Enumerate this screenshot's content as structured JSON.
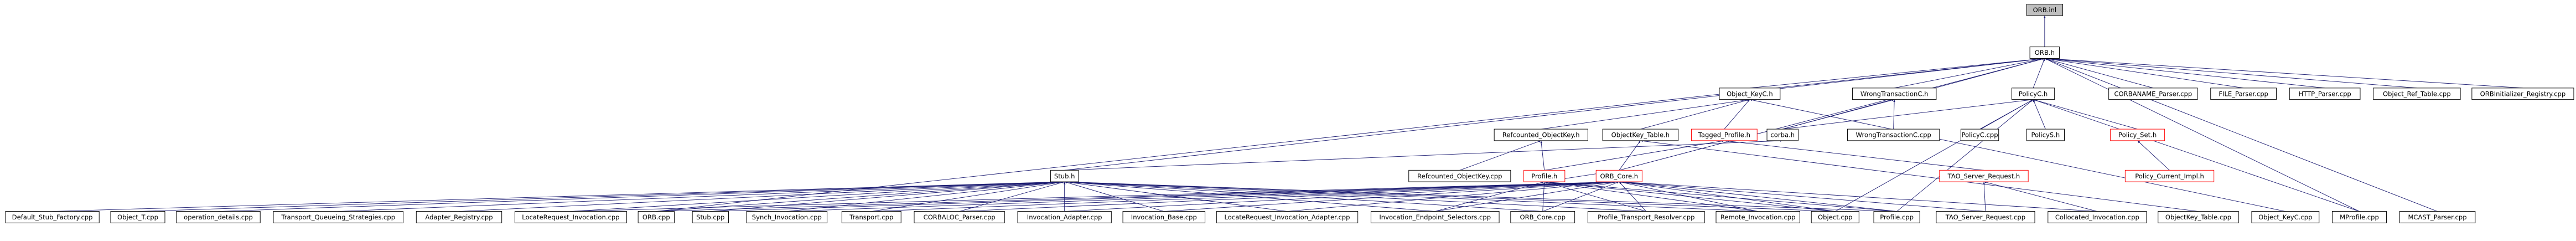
{
  "nodes": [
    {
      "label": "ORB.inl"
    },
    {
      "label": "ORB.h"
    },
    {
      "label": "Object_KeyC.h"
    },
    {
      "label": "WrongTransactionC.h"
    },
    {
      "label": "PolicyC.h"
    },
    {
      "label": "CORBANAME_Parser.cpp"
    },
    {
      "label": "FILE_Parser.cpp"
    },
    {
      "label": "HTTP_Parser.cpp"
    },
    {
      "label": "Object_Ref_Table.cpp"
    },
    {
      "label": "ORBInitializer_Registry.cpp"
    },
    {
      "label": "Refcounted_ObjectKey.h"
    },
    {
      "label": "ObjectKey_Table.h"
    },
    {
      "label": "Tagged_Profile.h"
    },
    {
      "label": "corba.h"
    },
    {
      "label": "WrongTransactionC.cpp"
    },
    {
      "label": "PolicyC.cpp"
    },
    {
      "label": "PolicyS.h"
    },
    {
      "label": "Policy_Set.h"
    },
    {
      "label": "Stub.h"
    },
    {
      "label": "Refcounted_ObjectKey.cpp"
    },
    {
      "label": "Profile.h"
    },
    {
      "label": "ORB_Core.h"
    },
    {
      "label": "TAO_Server_Request.h"
    },
    {
      "label": "Policy_Current_Impl.h"
    },
    {
      "label": "Default_Stub_Factory.cpp"
    },
    {
      "label": "Object_T.cpp"
    },
    {
      "label": "operation_details.cpp"
    },
    {
      "label": "Transport_Queueing_Strategies.cpp"
    },
    {
      "label": "Adapter_Registry.cpp"
    },
    {
      "label": "LocateRequest_Invocation.cpp"
    },
    {
      "label": "ORB.cpp"
    },
    {
      "label": "Stub.cpp"
    },
    {
      "label": "Synch_Invocation.cpp"
    },
    {
      "label": "Transport.cpp"
    },
    {
      "label": "CORBALOC_Parser.cpp"
    },
    {
      "label": "Invocation_Adapter.cpp"
    },
    {
      "label": "Invocation_Base.cpp"
    },
    {
      "label": "LocateRequest_Invocation_Adapter.cpp"
    },
    {
      "label": "Invocation_Endpoint_Selectors.cpp"
    },
    {
      "label": "ORB_Core.cpp"
    },
    {
      "label": "Profile_Transport_Resolver.cpp"
    },
    {
      "label": "Remote_Invocation.cpp"
    },
    {
      "label": "Object.cpp"
    },
    {
      "label": "Profile.cpp"
    },
    {
      "label": "TAO_Server_Request.cpp"
    },
    {
      "label": "Collocated_Invocation.cpp"
    },
    {
      "label": "ObjectKey_Table.cpp"
    },
    {
      "label": "Object_KeyC.cpp"
    },
    {
      "label": "MProfile.cpp"
    },
    {
      "label": "MCAST_Parser.cpp"
    }
  ]
}
